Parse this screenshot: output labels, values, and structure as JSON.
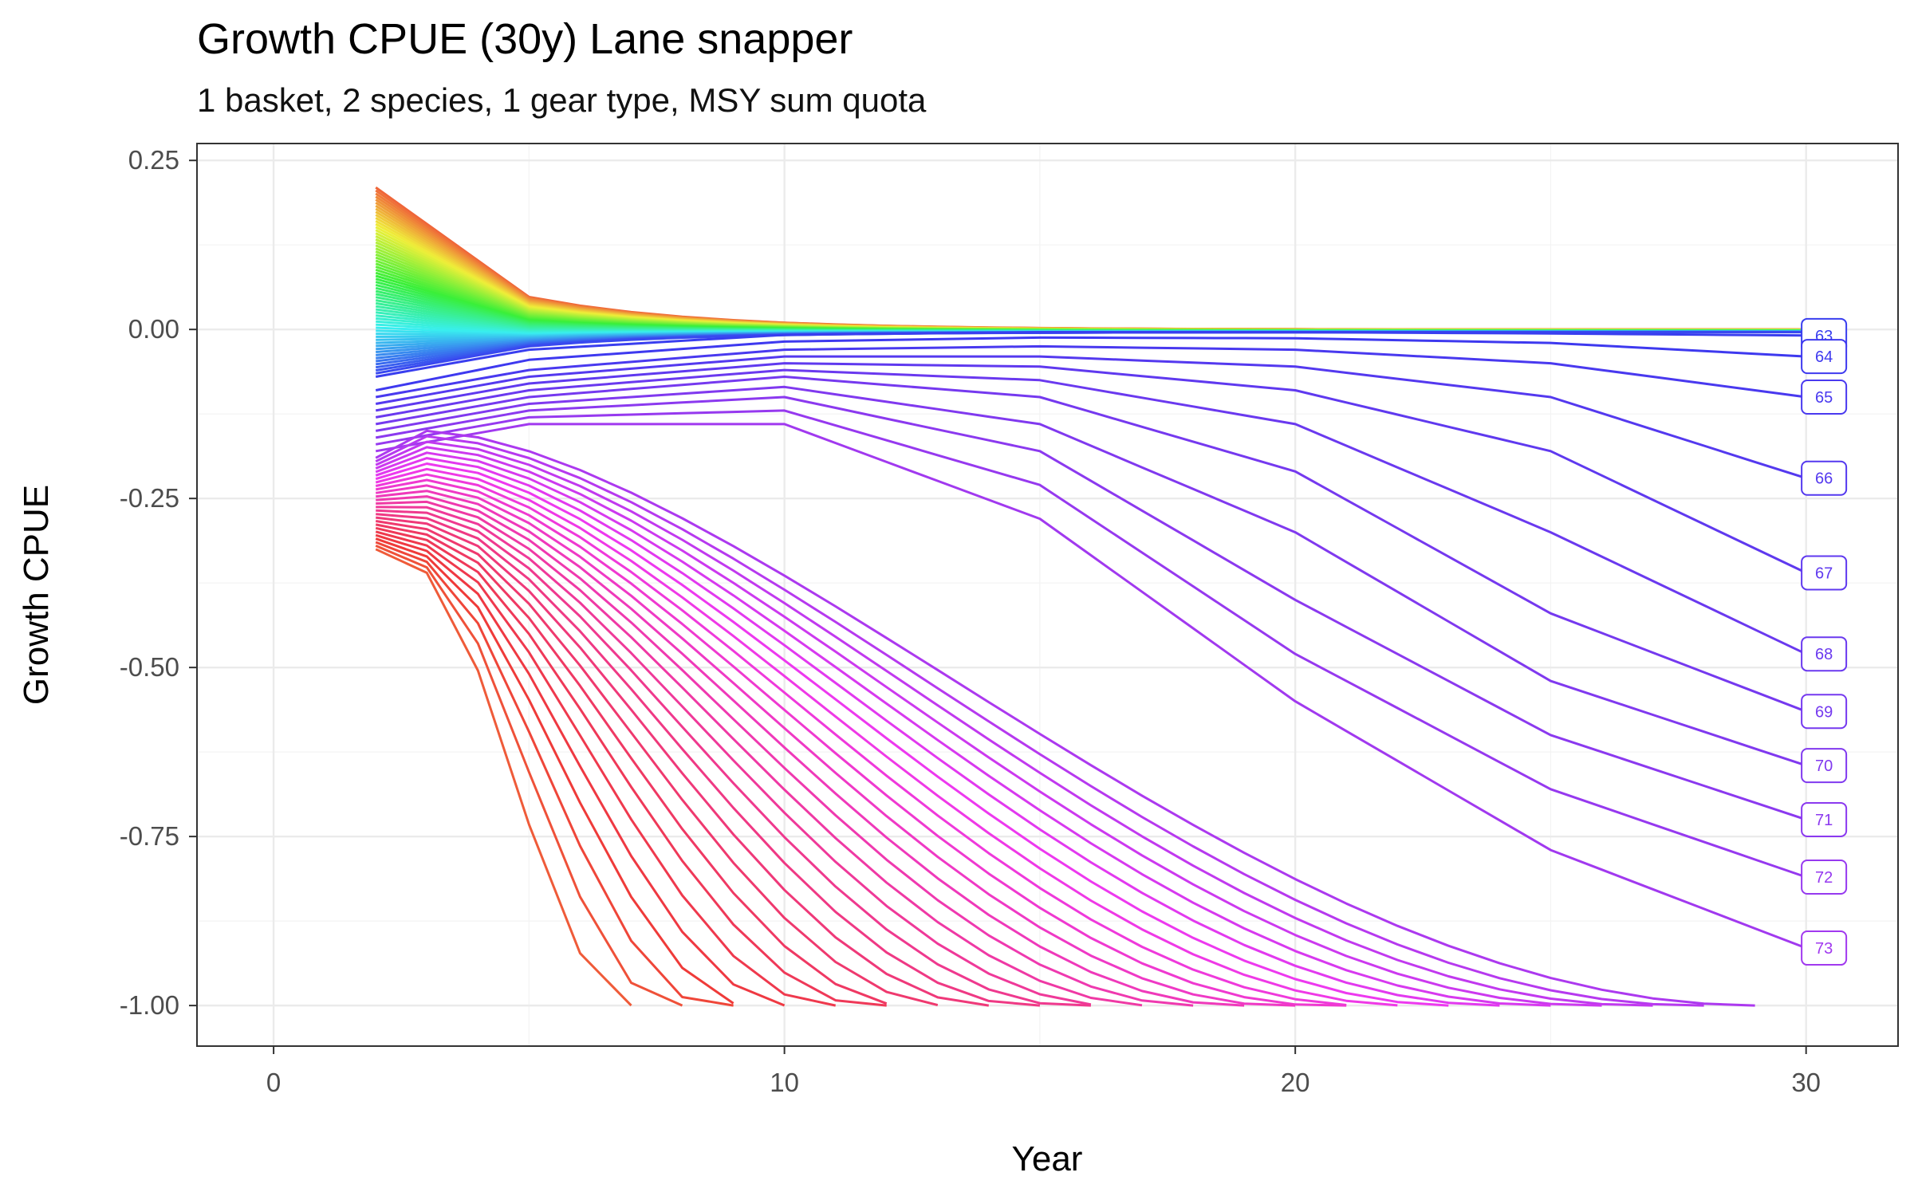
{
  "chart_data": {
    "type": "line",
    "title": "Growth CPUE (30y) Lane snapper",
    "subtitle": "1 basket, 2 species, 1 gear type, MSY sum quota",
    "xlabel": "Year",
    "ylabel": "Growth CPUE",
    "xlim": [
      -1.5,
      31.8
    ],
    "ylim": [
      -1.06,
      0.275
    ],
    "x_ticks": [
      0,
      10,
      20,
      30
    ],
    "x_tick_labels": [
      "0",
      "10",
      "20",
      "30"
    ],
    "y_ticks": [
      0.25,
      0,
      -0.25,
      -0.5,
      -0.75,
      -1.0
    ],
    "y_tick_labels": [
      "0.25",
      "0.00",
      "-0.25",
      "-0.50",
      "-0.75",
      "-1.00"
    ],
    "grid": true,
    "legend": "none",
    "series_count": 100,
    "series_note": "",
    "selected_series": [
      {
        "name": "63",
        "label": "63",
        "x": [
          2,
          5,
          10,
          15,
          20,
          25,
          30
        ],
        "y": [
          -0.07,
          -0.03,
          -0.008,
          -0.004,
          -0.004,
          -0.006,
          -0.009
        ]
      },
      {
        "name": "64",
        "label": "64",
        "x": [
          2,
          5,
          10,
          15,
          20,
          25,
          30
        ],
        "y": [
          -0.09,
          -0.045,
          -0.018,
          -0.012,
          -0.013,
          -0.02,
          -0.04
        ]
      },
      {
        "name": "65",
        "label": "65",
        "x": [
          2,
          5,
          10,
          15,
          20,
          25,
          30
        ],
        "y": [
          -0.1,
          -0.06,
          -0.03,
          -0.025,
          -0.03,
          -0.05,
          -0.1
        ]
      },
      {
        "name": "66",
        "label": "66",
        "x": [
          2,
          5,
          10,
          15,
          20,
          25,
          30
        ],
        "y": [
          -0.11,
          -0.07,
          -0.04,
          -0.04,
          -0.055,
          -0.1,
          -0.22
        ]
      },
      {
        "name": "67",
        "label": "67",
        "x": [
          2,
          5,
          10,
          15,
          20,
          25,
          30
        ],
        "y": [
          -0.12,
          -0.08,
          -0.05,
          -0.055,
          -0.09,
          -0.18,
          -0.36
        ]
      },
      {
        "name": "68",
        "label": "68",
        "x": [
          2,
          5,
          10,
          15,
          20,
          25,
          30
        ],
        "y": [
          -0.13,
          -0.09,
          -0.06,
          -0.075,
          -0.14,
          -0.3,
          -0.48
        ]
      },
      {
        "name": "69",
        "label": "69",
        "x": [
          2,
          5,
          10,
          15,
          20,
          25,
          30
        ],
        "y": [
          -0.14,
          -0.1,
          -0.07,
          -0.1,
          -0.21,
          -0.42,
          -0.565
        ]
      },
      {
        "name": "70",
        "label": "70",
        "x": [
          2,
          5,
          10,
          15,
          20,
          25,
          30
        ],
        "y": [
          -0.15,
          -0.11,
          -0.085,
          -0.14,
          -0.3,
          -0.52,
          -0.645
        ]
      },
      {
        "name": "71",
        "label": "71",
        "x": [
          2,
          5,
          10,
          15,
          20,
          25,
          30
        ],
        "y": [
          -0.16,
          -0.12,
          -0.1,
          -0.18,
          -0.4,
          -0.6,
          -0.725
        ]
      },
      {
        "name": "72",
        "label": "72",
        "x": [
          2,
          5,
          10,
          15,
          20,
          25,
          30
        ],
        "y": [
          -0.17,
          -0.13,
          -0.12,
          -0.23,
          -0.48,
          -0.68,
          -0.81
        ]
      },
      {
        "name": "73",
        "label": "73",
        "x": [
          2,
          5,
          10,
          15,
          20,
          25,
          30
        ],
        "y": [
          -0.18,
          -0.14,
          -0.14,
          -0.28,
          -0.55,
          -0.77,
          -0.915
        ]
      }
    ],
    "colors": {
      "panel_border": "#333333",
      "grid_major": "#ebebeb",
      "grid_minor": "#f3f3f3",
      "tick_label": "#4d4d4d"
    }
  }
}
